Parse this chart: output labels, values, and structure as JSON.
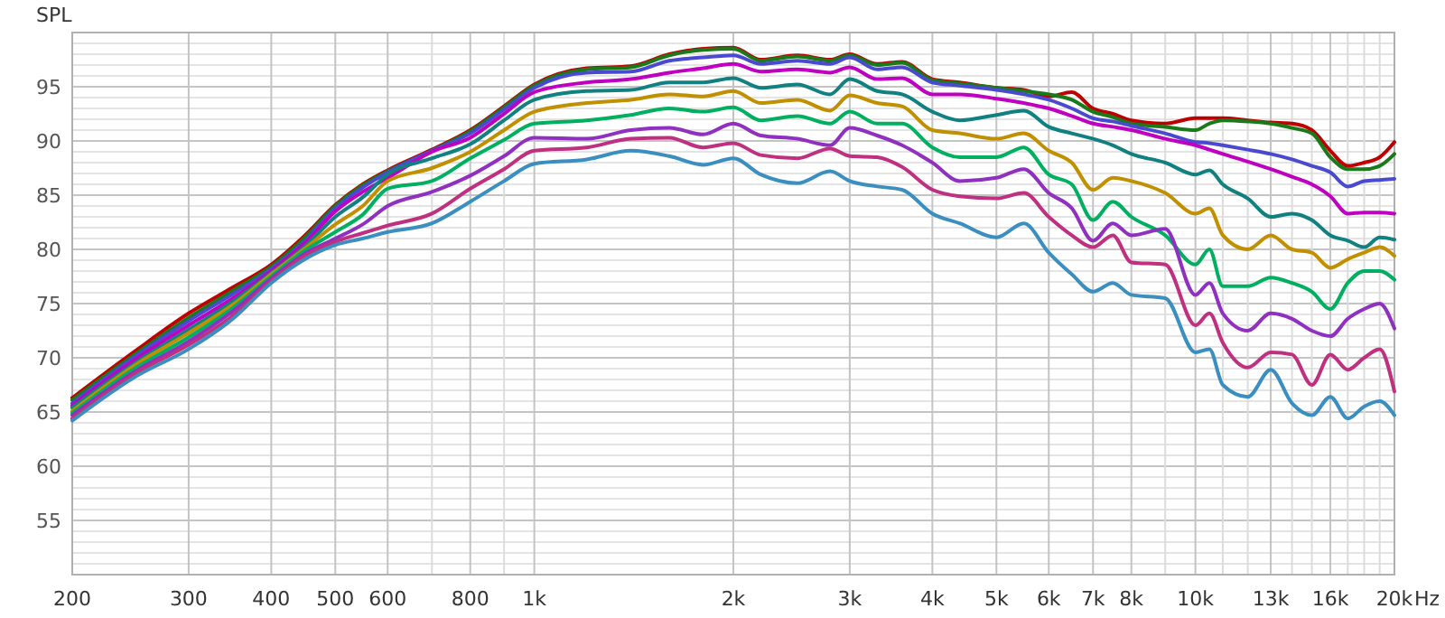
{
  "chart_data": {
    "type": "line",
    "ylabel": "SPL",
    "xlabel": "Hz",
    "log": "x",
    "grid": true,
    "line_style": "solid",
    "xlim": [
      200,
      20000
    ],
    "ylim": [
      50,
      100
    ],
    "xticks": [
      200,
      300,
      400,
      500,
      600,
      {
        "value": 700,
        "label": null
      },
      800,
      {
        "value": 900,
        "label": null
      },
      {
        "value": 1000,
        "label": "1k"
      },
      {
        "value": 2000,
        "label": "2k"
      },
      {
        "value": 3000,
        "label": "3k"
      },
      {
        "value": 4000,
        "label": "4k"
      },
      {
        "value": 5000,
        "label": "5k"
      },
      {
        "value": 6000,
        "label": "6k"
      },
      {
        "value": 7000,
        "label": "7k"
      },
      {
        "value": 8000,
        "label": "8k"
      },
      {
        "value": 9000,
        "label": null
      },
      {
        "value": 10000,
        "label": "10k"
      },
      {
        "value": 11000,
        "label": null
      },
      {
        "value": 12000,
        "label": null
      },
      {
        "value": 13000,
        "label": "13k"
      },
      {
        "value": 14000,
        "label": null
      },
      {
        "value": 15000,
        "label": null
      },
      {
        "value": 16000,
        "label": "16k"
      },
      {
        "value": 17000,
        "label": null
      },
      {
        "value": 18000,
        "label": null
      },
      {
        "value": 19000,
        "label": null
      },
      {
        "value": 20000,
        "label": "20k"
      }
    ],
    "yticks": [
      {
        "value": 50,
        "label": null
      },
      {
        "value": 51,
        "label": null
      },
      {
        "value": 52,
        "label": null
      },
      {
        "value": 53,
        "label": null
      },
      {
        "value": 54,
        "label": null
      },
      55,
      {
        "value": 56,
        "label": null
      },
      {
        "value": 57,
        "label": null
      },
      {
        "value": 58,
        "label": null
      },
      {
        "value": 59,
        "label": null
      },
      60,
      {
        "value": 61,
        "label": null
      },
      {
        "value": 62,
        "label": null
      },
      {
        "value": 63,
        "label": null
      },
      {
        "value": 64,
        "label": null
      },
      65,
      {
        "value": 66,
        "label": null
      },
      {
        "value": 67,
        "label": null
      },
      {
        "value": 68,
        "label": null
      },
      {
        "value": 69,
        "label": null
      },
      70,
      {
        "value": 71,
        "label": null
      },
      {
        "value": 72,
        "label": null
      },
      {
        "value": 73,
        "label": null
      },
      {
        "value": 74,
        "label": null
      },
      75,
      {
        "value": 76,
        "label": null
      },
      {
        "value": 77,
        "label": null
      },
      {
        "value": 78,
        "label": null
      },
      {
        "value": 79,
        "label": null
      },
      80,
      {
        "value": 81,
        "label": null
      },
      {
        "value": 82,
        "label": null
      },
      {
        "value": 83,
        "label": null
      },
      {
        "value": 84,
        "label": null
      },
      85,
      {
        "value": 86,
        "label": null
      },
      {
        "value": 87,
        "label": null
      },
      {
        "value": 88,
        "label": null
      },
      {
        "value": 89,
        "label": null
      },
      90,
      {
        "value": 91,
        "label": null
      },
      {
        "value": 92,
        "label": null
      },
      {
        "value": 93,
        "label": null
      },
      {
        "value": 94,
        "label": null
      },
      95,
      {
        "value": 96,
        "label": null
      },
      {
        "value": 97,
        "label": null
      },
      {
        "value": 98,
        "label": null
      },
      {
        "value": 99,
        "label": null
      },
      {
        "value": 100,
        "label": null
      }
    ],
    "x": [
      200,
      250,
      300,
      350,
      400,
      450,
      500,
      550,
      600,
      700,
      800,
      900,
      1000,
      1200,
      1400,
      1600,
      1800,
      2000,
      2200,
      2500,
      2800,
      3000,
      3300,
      3600,
      4000,
      4400,
      5000,
      5500,
      6000,
      6500,
      7000,
      7500,
      8000,
      9000,
      10000,
      10500,
      11000,
      12000,
      13000,
      14000,
      15000,
      16000,
      17000,
      18000,
      19000,
      20000
    ],
    "series": [
      {
        "color": "#c00000",
        "values": [
          66.3,
          70.7,
          74.1,
          76.5,
          78.6,
          81.3,
          84.1,
          86.0,
          87.3,
          89.2,
          91.0,
          93.2,
          95.2,
          96.7,
          96.9,
          98.0,
          98.5,
          98.6,
          97.5,
          97.9,
          97.5,
          98.0,
          97.1,
          97.3,
          95.7,
          95.4,
          94.9,
          94.7,
          94.1,
          94.5,
          93.0,
          92.5,
          91.9,
          91.6,
          92.1,
          92.1,
          92.1,
          91.9,
          91.7,
          91.6,
          91.0,
          89.1,
          87.7,
          88.0,
          88.5,
          89.9
        ]
      },
      {
        "color": "#1a7a1a",
        "values": [
          66.1,
          70.4,
          73.7,
          76.2,
          78.4,
          81.1,
          84.0,
          85.9,
          87.2,
          89.1,
          90.9,
          93.1,
          95.1,
          96.6,
          96.8,
          97.9,
          98.4,
          98.5,
          97.4,
          97.8,
          97.4,
          97.9,
          97.0,
          97.2,
          95.6,
          95.3,
          94.9,
          94.6,
          94.3,
          93.8,
          92.7,
          92.2,
          91.6,
          91.3,
          91.0,
          91.6,
          91.9,
          91.8,
          91.6,
          91.2,
          90.7,
          88.5,
          87.4,
          87.4,
          87.7,
          88.8
        ]
      },
      {
        "color": "#4a4ad0",
        "values": [
          65.8,
          70.2,
          73.4,
          75.9,
          78.2,
          80.8,
          83.8,
          85.7,
          87.1,
          89.1,
          90.7,
          92.9,
          94.9,
          96.3,
          96.4,
          97.4,
          97.7,
          97.9,
          97.1,
          97.4,
          97.1,
          97.7,
          96.6,
          96.8,
          95.4,
          95.1,
          94.7,
          94.3,
          93.8,
          93.0,
          92.1,
          91.8,
          91.4,
          90.7,
          89.9,
          89.8,
          89.6,
          89.2,
          88.8,
          88.3,
          87.7,
          87.1,
          85.8,
          86.3,
          86.4,
          86.5
        ]
      },
      {
        "color": "#c000c0",
        "values": [
          65.6,
          69.9,
          73.0,
          75.5,
          78.0,
          80.6,
          83.5,
          85.3,
          86.6,
          89.0,
          90.3,
          92.5,
          94.5,
          95.4,
          95.7,
          96.3,
          96.7,
          97.1,
          96.4,
          96.6,
          96.3,
          96.8,
          95.7,
          95.8,
          94.3,
          94.3,
          93.9,
          93.5,
          93.0,
          92.3,
          91.6,
          91.3,
          91.0,
          90.2,
          89.6,
          89.2,
          88.8,
          88.1,
          87.4,
          86.7,
          86.0,
          84.9,
          83.3,
          83.4,
          83.4,
          83.3
        ]
      },
      {
        "color": "#108080",
        "values": [
          65.4,
          69.6,
          72.6,
          75.2,
          77.8,
          80.3,
          83.0,
          84.8,
          86.9,
          88.4,
          89.7,
          91.9,
          93.8,
          94.6,
          94.7,
          95.4,
          95.4,
          95.8,
          94.9,
          95.2,
          94.3,
          95.7,
          94.6,
          94.3,
          92.7,
          91.9,
          92.4,
          92.8,
          91.3,
          90.7,
          90.2,
          89.6,
          88.8,
          88.0,
          86.9,
          87.3,
          86.0,
          84.7,
          83.0,
          83.3,
          82.7,
          81.3,
          80.8,
          80.2,
          81.1,
          80.9
        ]
      },
      {
        "color": "#c09000",
        "values": [
          65.1,
          69.4,
          72.3,
          74.9,
          77.7,
          80.1,
          82.3,
          84.0,
          86.3,
          87.5,
          89.0,
          91.0,
          92.7,
          93.5,
          93.8,
          94.3,
          94.1,
          94.6,
          93.5,
          93.8,
          92.8,
          94.2,
          93.5,
          93.2,
          91.0,
          90.7,
          90.2,
          90.7,
          89.1,
          88.0,
          85.5,
          86.6,
          86.3,
          85.2,
          83.3,
          83.8,
          81.3,
          80.0,
          81.3,
          80.0,
          79.7,
          78.3,
          79.1,
          79.7,
          80.2,
          79.4
        ]
      },
      {
        "color": "#00b060",
        "values": [
          64.9,
          69.1,
          71.9,
          74.6,
          77.5,
          79.9,
          81.6,
          83.2,
          85.6,
          86.3,
          88.4,
          90.1,
          91.6,
          91.9,
          92.4,
          93.0,
          92.7,
          93.1,
          91.9,
          92.3,
          91.6,
          92.7,
          91.6,
          91.6,
          89.4,
          88.5,
          88.5,
          89.4,
          86.9,
          86.0,
          82.7,
          84.4,
          83.0,
          81.3,
          78.6,
          80.0,
          76.6,
          76.6,
          77.4,
          76.9,
          76.1,
          74.5,
          76.9,
          78.0,
          78.0,
          77.2
        ]
      },
      {
        "color": "#9030c0",
        "values": [
          64.7,
          68.8,
          71.5,
          74.3,
          77.3,
          79.6,
          81.0,
          82.3,
          84.0,
          85.3,
          86.8,
          88.6,
          90.3,
          90.2,
          91.0,
          91.2,
          90.6,
          91.6,
          90.5,
          90.2,
          89.6,
          91.2,
          90.5,
          89.6,
          88.0,
          86.3,
          86.6,
          87.4,
          85.2,
          83.8,
          80.8,
          82.4,
          81.3,
          81.9,
          75.8,
          76.9,
          74.1,
          72.5,
          74.1,
          73.6,
          72.5,
          72.0,
          73.6,
          74.5,
          75.0,
          72.7
        ]
      },
      {
        "color": "#c03080",
        "values": [
          64.4,
          68.6,
          71.2,
          73.9,
          77.1,
          79.4,
          80.7,
          81.5,
          82.2,
          83.3,
          85.6,
          87.4,
          89.1,
          89.4,
          90.2,
          90.3,
          89.4,
          89.8,
          88.7,
          88.4,
          89.3,
          88.6,
          88.5,
          87.6,
          85.5,
          84.9,
          84.7,
          85.2,
          83.0,
          81.3,
          80.2,
          81.3,
          78.8,
          78.6,
          73.0,
          74.1,
          71.4,
          69.1,
          70.5,
          70.3,
          67.5,
          70.3,
          68.9,
          70.0,
          70.8,
          66.9
        ]
      },
      {
        "color": "#3a8fc0",
        "values": [
          64.2,
          68.3,
          70.8,
          73.6,
          76.9,
          79.1,
          80.4,
          81.0,
          81.6,
          82.4,
          84.4,
          86.3,
          87.9,
          88.3,
          89.1,
          88.6,
          87.8,
          88.4,
          86.9,
          86.1,
          87.2,
          86.3,
          85.8,
          85.5,
          83.3,
          82.4,
          81.1,
          82.4,
          79.7,
          77.7,
          76.1,
          76.9,
          75.8,
          75.5,
          70.5,
          70.8,
          67.5,
          66.4,
          68.9,
          65.8,
          64.7,
          66.4,
          64.4,
          65.5,
          66.0,
          64.7
        ]
      }
    ]
  }
}
